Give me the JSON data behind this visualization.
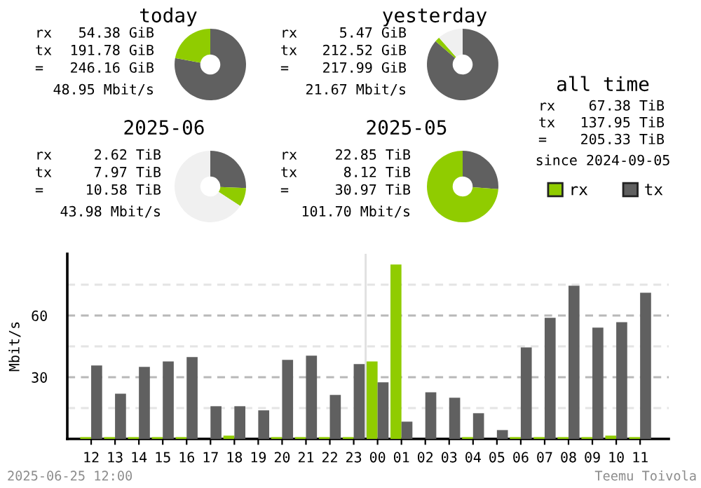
{
  "chart_data": [
    {
      "type": "donut",
      "title": "today",
      "categories": [
        null,
        null
      ],
      "values": [
        77.9,
        22.1
      ],
      "colors": [
        "#606060",
        "#90cc00"
      ],
      "annotations": [
        "rx",
        "54.38 GiB",
        "tx",
        "191.78 GiB",
        "=",
        "246.16 GiB",
        "48.95 Mbit/s"
      ]
    },
    {
      "type": "donut",
      "title": "yesterday",
      "categories": [
        null,
        null,
        null
      ],
      "values": [
        86.3,
        2.2,
        11.5
      ],
      "colors": [
        "#606060",
        "#90cc00",
        "#f0f0f0"
      ],
      "annotations": [
        "rx",
        "5.47 GiB",
        "tx",
        "212.52 GiB",
        "=",
        "217.99 GiB",
        "21.67 Mbit/s"
      ]
    },
    {
      "type": "donut",
      "title": "2025-06",
      "categories": [
        null,
        null,
        null
      ],
      "values": [
        25.7,
        8.5,
        65.8
      ],
      "colors": [
        "#606060",
        "#90cc00",
        "#f0f0f0"
      ],
      "annotations": [
        "rx",
        "2.62 TiB",
        "tx",
        "7.97 TiB",
        "=",
        "10.58 TiB",
        "43.98 Mbit/s"
      ]
    },
    {
      "type": "donut",
      "title": "2025-05",
      "categories": [
        null,
        null
      ],
      "values": [
        26.2,
        73.8
      ],
      "colors": [
        "#606060",
        "#90cc00"
      ],
      "annotations": [
        "rx",
        "22.85 TiB",
        "tx",
        "8.12 TiB",
        "=",
        "30.97 TiB",
        "101.70 Mbit/s"
      ]
    },
    {
      "type": "other",
      "title": "all time",
      "annotations": [
        "rx",
        "67.38 TiB",
        "tx",
        "137.95 TiB",
        "=",
        "205.33 TiB",
        "since 2024-09-05"
      ]
    },
    {
      "type": "bar",
      "ylabel": "Mbit/s",
      "categories": [
        "12",
        "13",
        "14",
        "15",
        "16",
        "17",
        "18",
        "19",
        "20",
        "21",
        "22",
        "23",
        "00",
        "01",
        "02",
        "03",
        "04",
        "05",
        "06",
        "07",
        "08",
        "09",
        "10",
        "11"
      ],
      "series": [
        {
          "name": "rx",
          "color": "#90cc00",
          "values": [
            0.9,
            0.9,
            0.9,
            0.9,
            0.9,
            0,
            1.6,
            0,
            0.9,
            0.9,
            0.9,
            0.9,
            37.7,
            84.8,
            0,
            0,
            0.9,
            0,
            0.9,
            0.9,
            0.9,
            0.9,
            1.6,
            0.9
          ]
        },
        {
          "name": "tx",
          "color": "#606060",
          "values": [
            35.7,
            22.0,
            35.0,
            37.7,
            39.8,
            15.9,
            15.9,
            13.9,
            38.4,
            40.5,
            21.4,
            36.4,
            27.5,
            8.4,
            22.7,
            20.0,
            12.5,
            4.3,
            44.5,
            58.9,
            74.5,
            54.1,
            56.8,
            71.1
          ]
        }
      ],
      "ylim": [
        0,
        90
      ],
      "yticks": [
        {
          "value": 15,
          "label": null
        },
        30,
        {
          "value": 45,
          "label": null
        },
        60,
        {
          "value": 75,
          "label": null
        }
      ],
      "grid": "y",
      "legend": "top right",
      "ref_lines": [
        {
          "axis": "x",
          "value": "00",
          "label": null,
          "color": "#e0e0e0",
          "line_style": "solid"
        }
      ],
      "annotations": [
        "2025-06-25 12:00",
        "Teemu Toivola"
      ]
    }
  ]
}
